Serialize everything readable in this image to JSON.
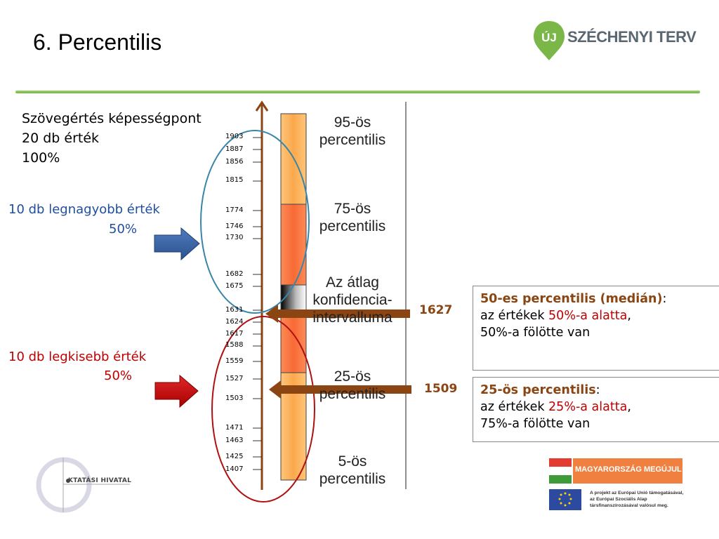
{
  "slide": {
    "title": "6. Percentilis",
    "logo_text": "SZÉCHENYI TERV",
    "logo_badge": "ÚJ",
    "info_line1": "Szövegértés képességpont",
    "info_line2": "20 db érték",
    "info_line3": "100%",
    "top_half_label": "10 db legnagyobb érték",
    "top_half_pct": "50%",
    "bottom_half_label": "10 db legkisebb érték",
    "bottom_half_pct": "50%",
    "ticks": [
      "1903",
      "1887",
      "1856",
      "1815",
      "1774",
      "1746",
      "1730",
      "1682",
      "1675",
      "1631",
      "1624",
      "1617",
      "1588",
      "1559",
      "1527",
      "1503",
      "1471",
      "1463",
      "1425",
      "1407"
    ],
    "bands": {
      "p95": [
        "95-ös",
        "percentilis"
      ],
      "p75": [
        "75-ös",
        "percentilis"
      ],
      "ci": [
        "Az átlag",
        "konfidencia-",
        "intervalluma"
      ],
      "p25": [
        "25-ös",
        "percentilis"
      ],
      "p5": [
        "5-ös",
        "percentilis"
      ]
    },
    "median_value": "1627",
    "q1_value": "1509",
    "median_box": {
      "title": "50-es percentilis (medián)",
      "colon": ":",
      "line1_prefix": "az értékek ",
      "line1_red": "50%-a alatta",
      "line1_suffix": ",",
      "line2": "50%-a fölötte van"
    },
    "q1_box": {
      "title": "25-ös percentilis",
      "colon": ":",
      "line1_prefix": "az értékek ",
      "line1_red": "25%-a alatta",
      "line1_suffix": ",",
      "line2": "75%-a fölötte van"
    },
    "footer_left_logo": "KTATÁSI HIVATAL",
    "footer_banner": "MAGYARORSZÁG MEGÚJUL",
    "footer_eu_line1": "A projekt az Európai Unió támogatásával,",
    "footer_eu_line2": "az Európai Szociális Alap",
    "footer_eu_line3": "társfinanszírozásával valósul meg."
  },
  "colors": {
    "accent_green": "#6fb43f",
    "blue_text": "#1f4e9e",
    "red_text": "#c00000",
    "brown": "#8b4513",
    "band_light_orange": "#fdbf6f",
    "band_dark_orange": "#fa7d4a"
  }
}
